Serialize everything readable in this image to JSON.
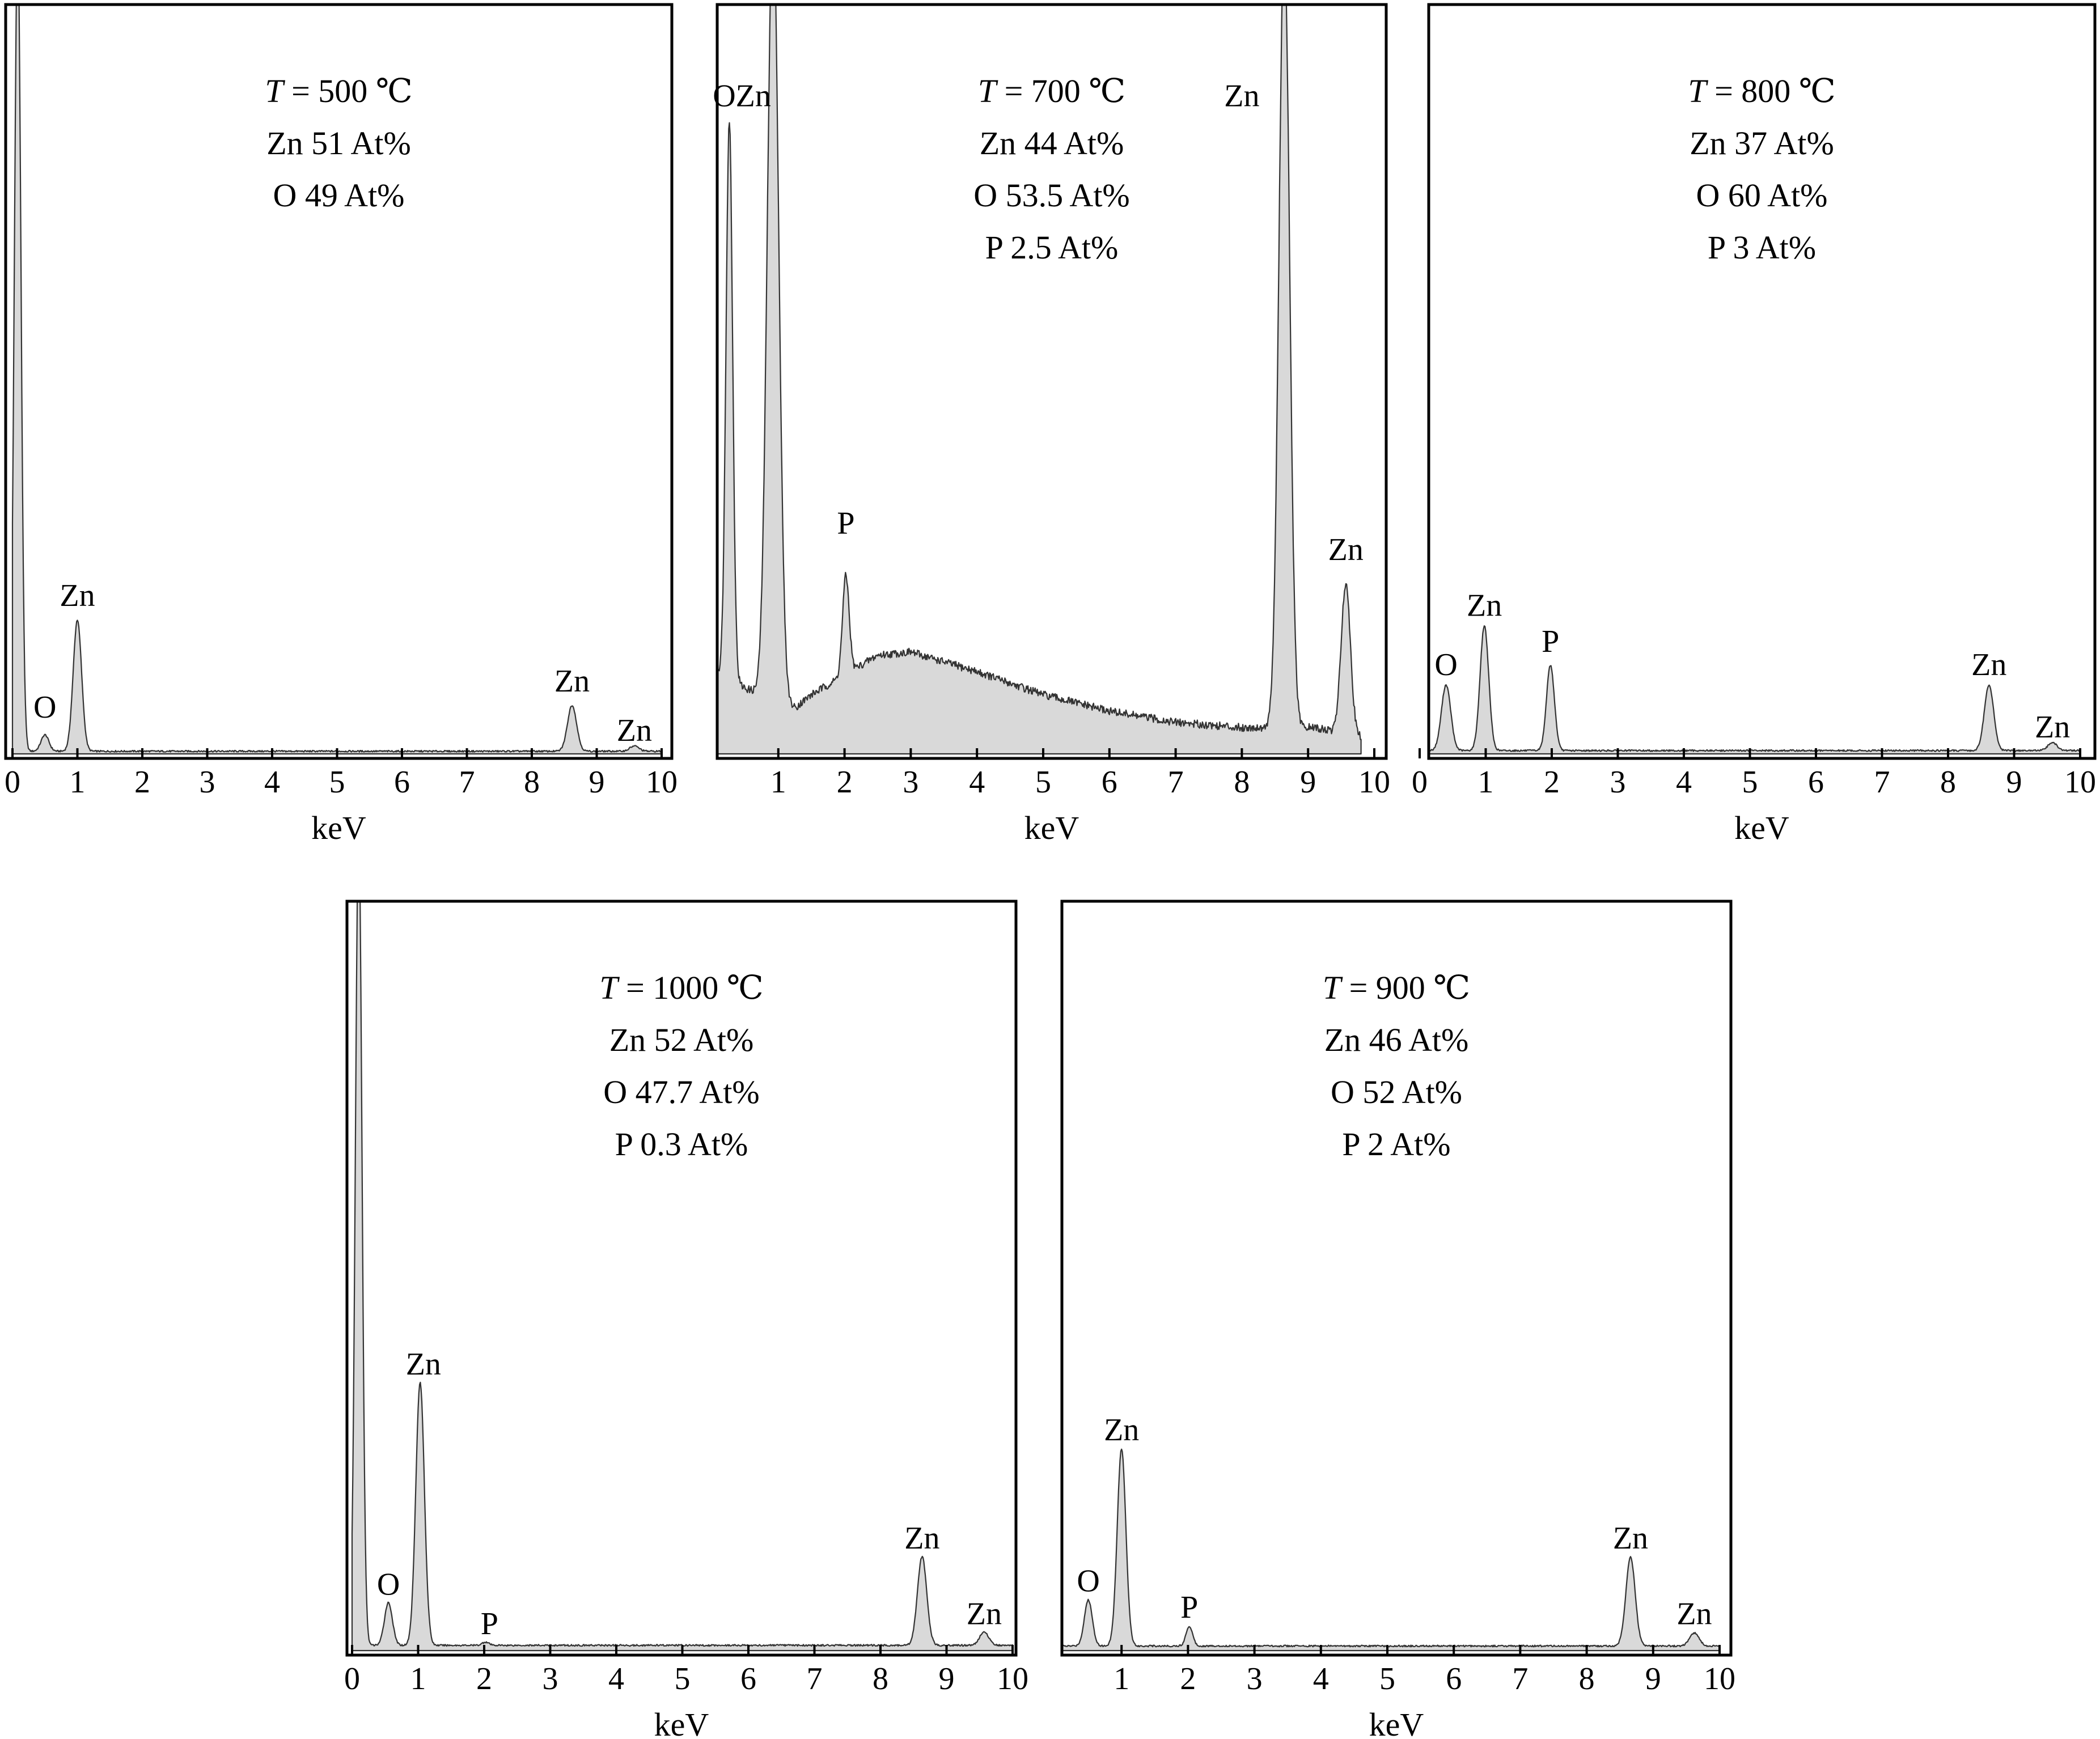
{
  "chart_data": [
    {
      "type": "area",
      "xlabel": "keV",
      "ylabel": "",
      "xlim": [
        0,
        10
      ],
      "x_ticks": [
        "0",
        "1",
        "2",
        "3",
        "4",
        "5",
        "6",
        "7",
        "8",
        "9",
        "10"
      ],
      "annotation_lines": [
        {
          "prefix": "",
          "italic": "T",
          "text": " = 500 ℃"
        },
        {
          "prefix": "",
          "italic": "",
          "text": "Zn 51 At%"
        },
        {
          "prefix": "",
          "italic": "",
          "text": "O 49 At%"
        }
      ],
      "composition": {
        "temperature": "500 ℃",
        "Zn": 51,
        "O": 49
      },
      "baseline": 0.004,
      "peaks": [
        {
          "x": 0.08,
          "height": 1.25,
          "width": 0.05
        },
        {
          "x": 0.5,
          "height": 0.025,
          "width": 0.06
        },
        {
          "x": 1.0,
          "height": 0.2,
          "width": 0.065
        },
        {
          "x": 8.62,
          "height": 0.07,
          "width": 0.07
        },
        {
          "x": 9.58,
          "height": 0.008,
          "width": 0.07
        }
      ],
      "peak_labels": [
        {
          "label": "O",
          "x": 0.5,
          "y": 0.055
        },
        {
          "label": "Zn",
          "x": 1.0,
          "y": 0.225
        },
        {
          "label": "Zn",
          "x": 8.62,
          "y": 0.095
        },
        {
          "label": "Zn",
          "x": 9.58,
          "y": 0.02
        }
      ]
    },
    {
      "type": "area",
      "xlabel": "keV",
      "ylabel": "",
      "xlim": [
        0,
        10
      ],
      "x_ticks": [
        "1",
        "2",
        "3",
        "4",
        "5",
        "6",
        "7",
        "8",
        "9",
        "10"
      ],
      "annotation_lines": [
        {
          "prefix": "",
          "italic": "T",
          "text": " = 700 ℃"
        },
        {
          "prefix": "",
          "italic": "",
          "text": "Zn 44 At%"
        },
        {
          "prefix": "",
          "italic": "",
          "text": "O 53.5 At%"
        },
        {
          "prefix": "",
          "italic": "",
          "text": "P 2.5 At%"
        }
      ],
      "composition": {
        "temperature": "700 ℃",
        "Zn": 44,
        "O": 53.5,
        "P": 2.5
      },
      "background": [
        [
          0.0,
          0.13
        ],
        [
          0.5,
          0.1
        ],
        [
          1.25,
          0.07
        ],
        [
          1.5,
          0.09
        ],
        [
          2.5,
          0.15
        ],
        [
          3.0,
          0.155
        ],
        [
          3.5,
          0.14
        ],
        [
          4.0,
          0.125
        ],
        [
          5.0,
          0.09
        ],
        [
          6.0,
          0.065
        ],
        [
          7.0,
          0.048
        ],
        [
          8.0,
          0.04
        ],
        [
          8.35,
          0.04
        ],
        [
          9.1,
          0.04
        ],
        [
          9.8,
          0.025
        ]
      ],
      "end_x": 9.8,
      "peaks": [
        {
          "x": 0.26,
          "height": 0.85,
          "width": 0.05
        },
        {
          "x": 0.92,
          "height": 1.2,
          "width": 0.085
        },
        {
          "x": 2.02,
          "height": 0.15,
          "width": 0.05
        },
        {
          "x": 8.64,
          "height": 1.2,
          "width": 0.08
        },
        {
          "x": 9.57,
          "height": 0.23,
          "width": 0.07
        }
      ],
      "peak_labels": [
        {
          "label": "OZn",
          "x": 0.45,
          "y": 0.985
        },
        {
          "label": "P",
          "x": 2.02,
          "y": 0.335
        },
        {
          "label": "Zn",
          "x": 8.0,
          "y": 0.985
        },
        {
          "label": "Zn",
          "x": 9.57,
          "y": 0.295
        }
      ]
    },
    {
      "type": "area",
      "xlabel": "keV",
      "ylabel": "",
      "xlim": [
        0,
        10
      ],
      "x_ticks": [
        "0",
        "1",
        "2",
        "3",
        "4",
        "5",
        "6",
        "7",
        "8",
        "9",
        "10"
      ],
      "annotation_lines": [
        {
          "prefix": "",
          "italic": "T",
          "text": " = 800 ℃"
        },
        {
          "prefix": "",
          "italic": "",
          "text": "Zn 37 At%"
        },
        {
          "prefix": "",
          "italic": "",
          "text": "O 60 At%"
        },
        {
          "prefix": "",
          "italic": "",
          "text": "P 3 At%"
        }
      ],
      "composition": {
        "temperature": "800 ℃",
        "Zn": 37,
        "O": 60,
        "P": 3
      },
      "baseline": 0.005,
      "peaks": [
        {
          "x": 0.4,
          "height": 0.1,
          "width": 0.07
        },
        {
          "x": 0.98,
          "height": 0.19,
          "width": 0.065
        },
        {
          "x": 1.98,
          "height": 0.13,
          "width": 0.06
        },
        {
          "x": 8.62,
          "height": 0.1,
          "width": 0.07
        },
        {
          "x": 9.58,
          "height": 0.012,
          "width": 0.07
        }
      ],
      "peak_labels": [
        {
          "label": "O",
          "x": 0.4,
          "y": 0.12
        },
        {
          "label": "Zn",
          "x": 0.98,
          "y": 0.21
        },
        {
          "label": "P",
          "x": 1.98,
          "y": 0.155
        },
        {
          "label": "Zn",
          "x": 8.62,
          "y": 0.12
        },
        {
          "label": "Zn",
          "x": 9.58,
          "y": 0.025
        }
      ]
    },
    {
      "type": "area",
      "xlabel": "keV",
      "ylabel": "",
      "xlim": [
        0,
        10
      ],
      "x_ticks": [
        "0",
        "1",
        "2",
        "3",
        "4",
        "5",
        "6",
        "7",
        "8",
        "9",
        "10"
      ],
      "annotation_lines": [
        {
          "prefix": "",
          "italic": "T",
          "text": " = 1000 ℃"
        },
        {
          "prefix": "",
          "italic": "",
          "text": "Zn 52 At%"
        },
        {
          "prefix": "",
          "italic": "",
          "text": "O 47.7 At%"
        },
        {
          "prefix": "",
          "italic": "",
          "text": "P 0.3 At%"
        }
      ],
      "composition": {
        "temperature": "1000 ℃",
        "Zn": 52,
        "O": 47.7,
        "P": 0.3
      },
      "baseline": 0.008,
      "peaks": [
        {
          "x": 0.1,
          "height": 1.25,
          "width": 0.05
        },
        {
          "x": 0.55,
          "height": 0.065,
          "width": 0.06
        },
        {
          "x": 1.03,
          "height": 0.4,
          "width": 0.065
        },
        {
          "x": 2.02,
          "height": 0.005,
          "width": 0.05
        },
        {
          "x": 8.63,
          "height": 0.135,
          "width": 0.07
        },
        {
          "x": 9.57,
          "height": 0.02,
          "width": 0.07
        }
      ],
      "peak_labels": [
        {
          "label": "O",
          "x": 0.55,
          "y": 0.085
        },
        {
          "label": "Zn",
          "x": 1.08,
          "y": 0.42
        },
        {
          "label": "P",
          "x": 2.08,
          "y": 0.025
        },
        {
          "label": "Zn",
          "x": 8.63,
          "y": 0.155
        },
        {
          "label": "Zn",
          "x": 9.57,
          "y": 0.04
        }
      ]
    },
    {
      "type": "area",
      "xlabel": "keV",
      "ylabel": "",
      "xlim": [
        -0.3,
        10
      ],
      "x_ticks": [
        "1",
        "2",
        "3",
        "4",
        "5",
        "6",
        "7",
        "8",
        "9",
        "10"
      ],
      "annotation_lines": [
        {
          "prefix": "",
          "italic": "T",
          "text": " = 900 ℃"
        },
        {
          "prefix": "",
          "italic": "",
          "text": "Zn 46 At%"
        },
        {
          "prefix": "",
          "italic": "",
          "text": "O 52 At%"
        },
        {
          "prefix": "",
          "italic": "",
          "text": "P 2 At%"
        }
      ],
      "composition": {
        "temperature": "900 ℃",
        "Zn": 46,
        "O": 52,
        "P": 2
      },
      "baseline": 0.007,
      "start_x": -0.05,
      "peaks": [
        {
          "x": 0.5,
          "height": 0.07,
          "width": 0.06
        },
        {
          "x": 1.0,
          "height": 0.3,
          "width": 0.065
        },
        {
          "x": 2.02,
          "height": 0.03,
          "width": 0.05
        },
        {
          "x": 8.66,
          "height": 0.135,
          "width": 0.07
        },
        {
          "x": 9.62,
          "height": 0.02,
          "width": 0.07
        }
      ],
      "peak_labels": [
        {
          "label": "O",
          "x": 0.5,
          "y": 0.09
        },
        {
          "label": "Zn",
          "x": 1.0,
          "y": 0.32
        },
        {
          "label": "P",
          "x": 2.02,
          "y": 0.05
        },
        {
          "label": "Zn",
          "x": 8.66,
          "y": 0.155
        },
        {
          "label": "Zn",
          "x": 9.62,
          "y": 0.04
        }
      ]
    }
  ]
}
